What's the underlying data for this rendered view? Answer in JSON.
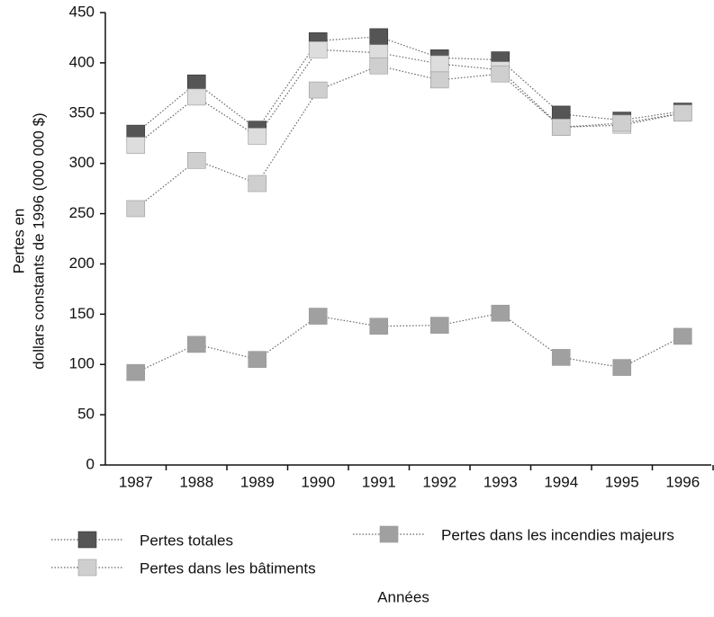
{
  "chart_data": {
    "type": "line",
    "ylabel": [
      "Pertes en",
      "dollars constants de 1996 (000 000 $)"
    ],
    "xlabel": "Années",
    "categories": [
      "1987",
      "1988",
      "1989",
      "1990",
      "1991",
      "1992",
      "1993",
      "1994",
      "1995",
      "1996"
    ],
    "series": [
      {
        "name": "Pertes totales",
        "color": "#555555",
        "values": [
          330,
          380,
          334,
          422,
          426,
          405,
          403,
          349,
          343,
          352
        ]
      },
      {
        "color": "#dddddd",
        "values": [
          318,
          366,
          327,
          413,
          410,
          399,
          393,
          336,
          338,
          350
        ]
      },
      {
        "name": "Pertes dans les bâtiments",
        "color": "#cfcfcf",
        "values": [
          255,
          303,
          280,
          373,
          397,
          383,
          389,
          336,
          340,
          350
        ]
      },
      {
        "name": "Pertes dans les incendies majeurs",
        "color": "#a0a0a0",
        "values": [
          92,
          120,
          105,
          148,
          138,
          139,
          151,
          107,
          97,
          128
        ]
      }
    ],
    "ylim": [
      0,
      450
    ],
    "yticks": [
      0,
      50,
      100,
      150,
      200,
      250,
      300,
      350,
      400,
      450
    ]
  }
}
